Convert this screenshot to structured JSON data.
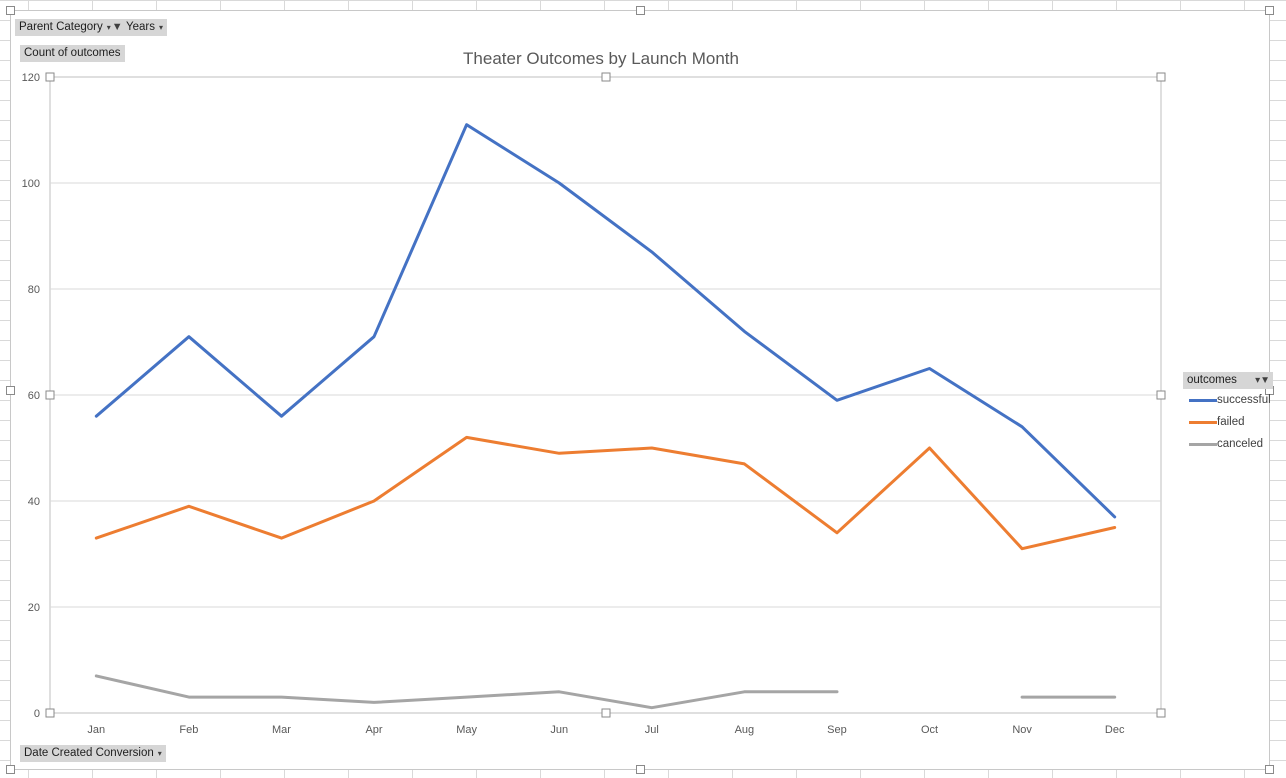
{
  "field_buttons": {
    "parent_category": "Parent Category",
    "years": "Years",
    "count_of_outcomes": "Count of outcomes",
    "date_created_conversion": "Date Created Conversion",
    "dropdown_arrow": "▾",
    "filter_icon": "funnel-icon"
  },
  "legend": {
    "title": "outcomes"
  },
  "chart_data": {
    "type": "line",
    "title": "Theater Outcomes by Launch Month",
    "xlabel": "",
    "ylabel": "",
    "categories": [
      "Jan",
      "Feb",
      "Mar",
      "Apr",
      "May",
      "Jun",
      "Jul",
      "Aug",
      "Sep",
      "Oct",
      "Nov",
      "Dec"
    ],
    "ylim": [
      0,
      120
    ],
    "yticks": [
      0,
      20,
      40,
      60,
      80,
      100,
      120
    ],
    "grid": true,
    "legend_position": "right",
    "series": [
      {
        "name": "successful",
        "color": "#4472C4",
        "values": [
          56,
          71,
          56,
          71,
          111,
          100,
          87,
          72,
          59,
          65,
          54,
          37
        ]
      },
      {
        "name": "failed",
        "color": "#ED7D31",
        "values": [
          33,
          39,
          33,
          40,
          52,
          49,
          50,
          47,
          34,
          50,
          31,
          35
        ]
      },
      {
        "name": "canceled",
        "color": "#A5A5A5",
        "values": [
          7,
          3,
          3,
          2,
          3,
          4,
          1,
          4,
          4,
          null,
          3,
          3
        ]
      }
    ]
  }
}
